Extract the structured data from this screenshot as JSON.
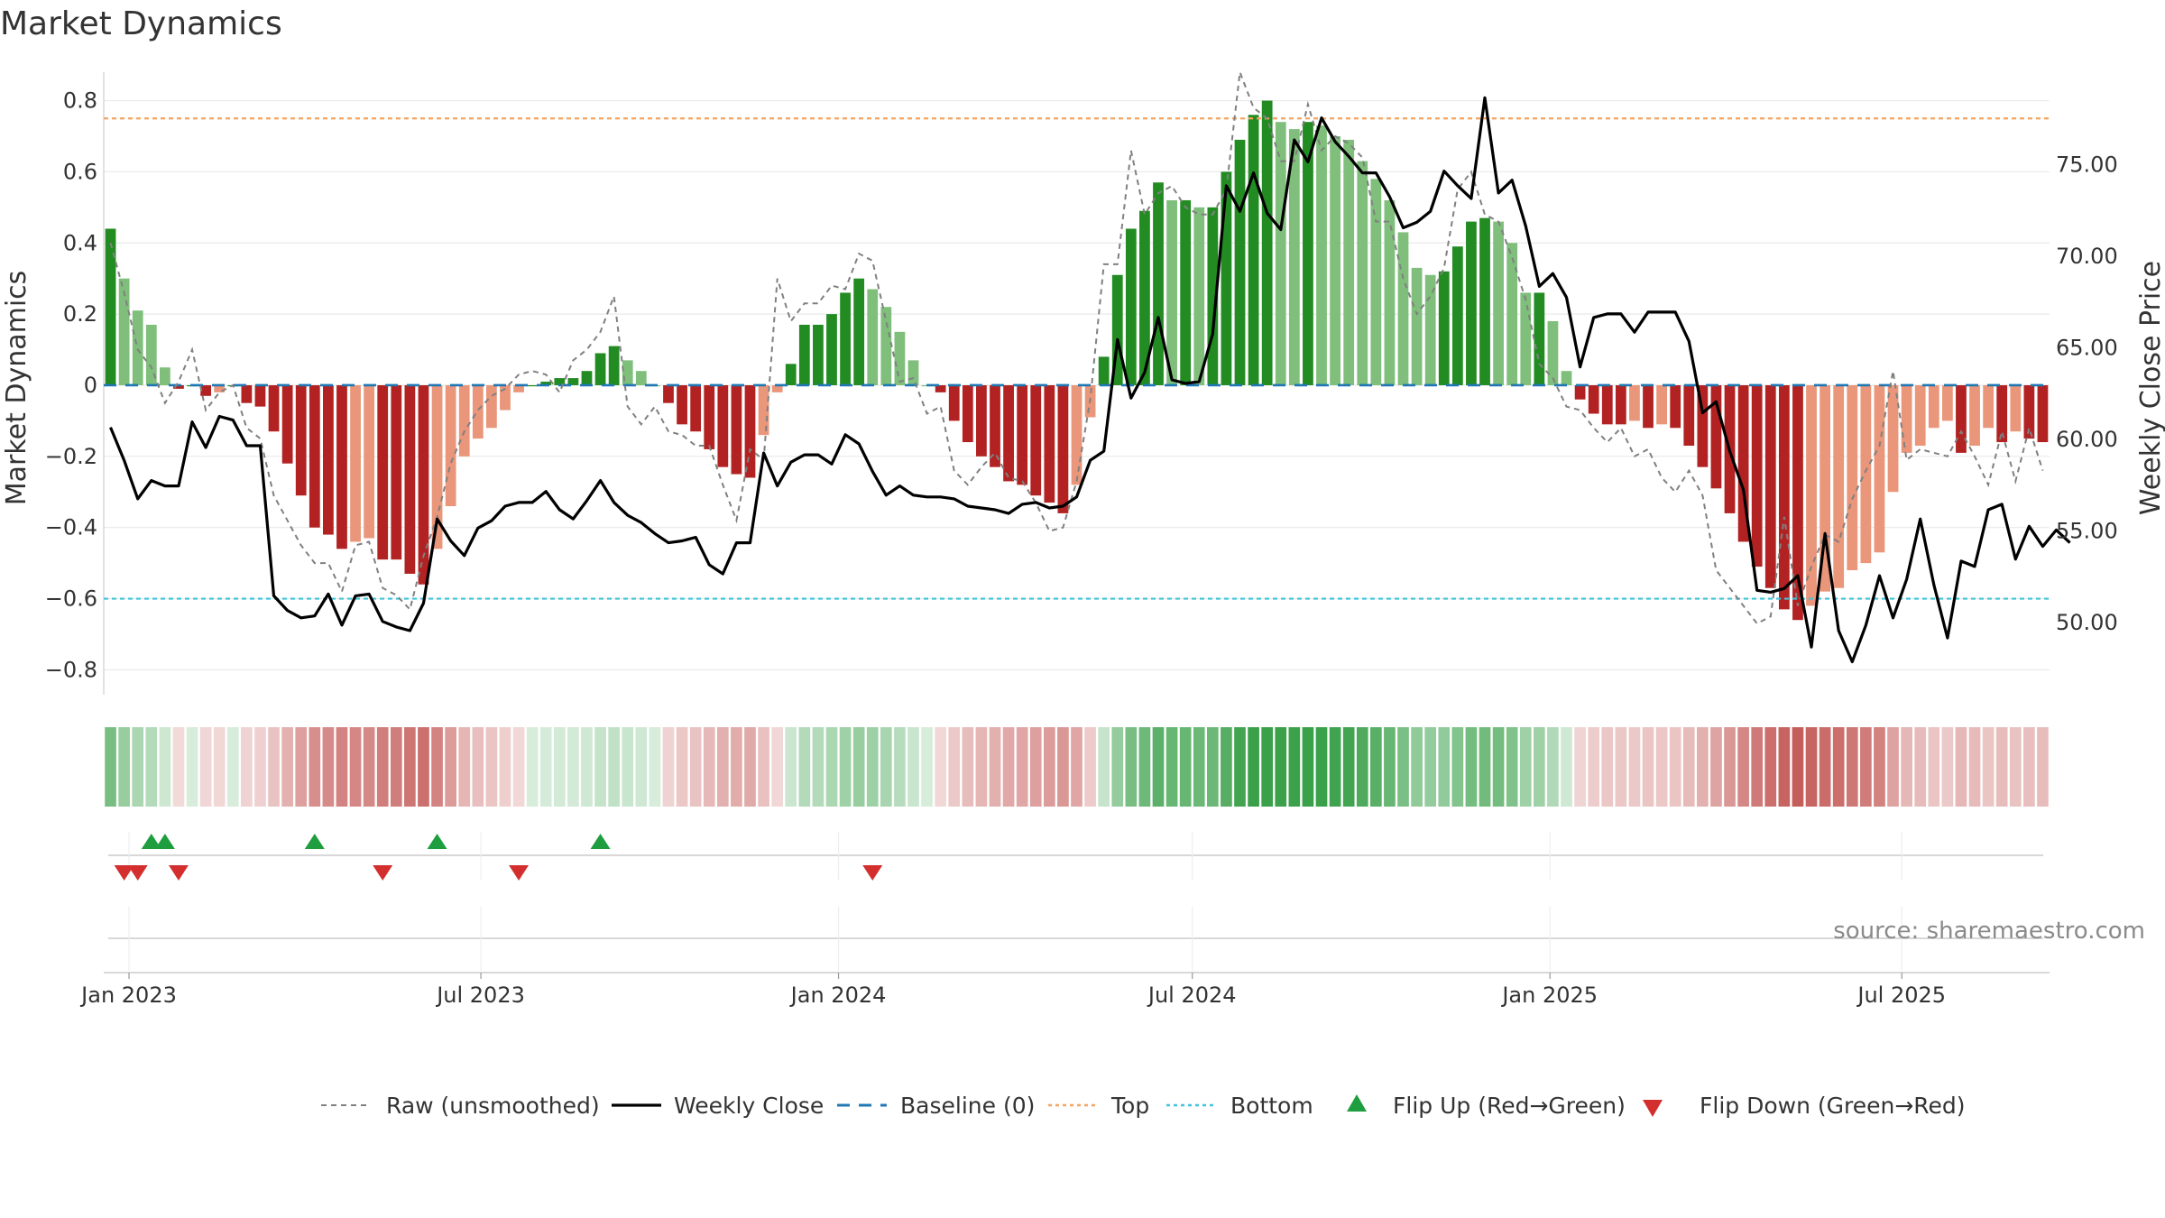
{
  "chart_data": {
    "type": "bar",
    "title": "Market Dynamics",
    "ylabel_left": "Market Dynamics",
    "ylabel_right": "Weekly Close Price",
    "source": "source: sharemaestro.com",
    "xlim": [
      "2022-12-19",
      "2025-09-15"
    ],
    "ylim_left": [
      -0.87,
      0.88
    ],
    "ylim_right": [
      46.0,
      80.0
    ],
    "left_ticks": [
      {
        "v": 0.8,
        "label": "0.8"
      },
      {
        "v": 0.6,
        "label": "0.6"
      },
      {
        "v": 0.4,
        "label": "0.4"
      },
      {
        "v": 0.2,
        "label": "0.2"
      },
      {
        "v": 0.0,
        "label": "0"
      },
      {
        "v": -0.2,
        "label": "−0.2"
      },
      {
        "v": -0.4,
        "label": "−0.4"
      },
      {
        "v": -0.6,
        "label": "−0.6"
      },
      {
        "v": -0.8,
        "label": "−0.8"
      }
    ],
    "right_ticks": [
      {
        "v": 75,
        "label": "75.00"
      },
      {
        "v": 70,
        "label": "70.00"
      },
      {
        "v": 65,
        "label": "65.00"
      },
      {
        "v": 60,
        "label": "60.00"
      },
      {
        "v": 55,
        "label": "55.00"
      },
      {
        "v": 50,
        "label": "50.00"
      }
    ],
    "x_ticks": [
      {
        "date": "2023-01-01",
        "label": "Jan 2023"
      },
      {
        "date": "2023-07-01",
        "label": "Jul 2023"
      },
      {
        "date": "2024-01-01",
        "label": "Jan 2024"
      },
      {
        "date": "2024-07-01",
        "label": "Jul 2024"
      },
      {
        "date": "2025-01-01",
        "label": "Jan 2025"
      },
      {
        "date": "2025-07-01",
        "label": "Jul 2025"
      }
    ],
    "start_date": "2022-12-19",
    "reference_lines": {
      "top": 0.75,
      "bottom": -0.6,
      "baseline": 0.0
    },
    "series": [
      {
        "name": "Market Dynamics",
        "values": [
          0.44,
          0.3,
          0.21,
          0.17,
          0.05,
          -0.01,
          0.0,
          -0.03,
          -0.02,
          0.0,
          -0.05,
          -0.06,
          -0.13,
          -0.22,
          -0.31,
          -0.4,
          -0.42,
          -0.46,
          -0.44,
          -0.43,
          -0.49,
          -0.49,
          -0.53,
          -0.56,
          -0.46,
          -0.34,
          -0.2,
          -0.15,
          -0.12,
          -0.07,
          -0.02,
          0.0,
          0.01,
          0.02,
          0.02,
          0.04,
          0.09,
          0.11,
          0.07,
          0.04,
          0.0,
          -0.05,
          -0.11,
          -0.13,
          -0.18,
          -0.23,
          -0.25,
          -0.26,
          -0.14,
          -0.02,
          0.06,
          0.17,
          0.17,
          0.2,
          0.26,
          0.3,
          0.27,
          0.22,
          0.15,
          0.07,
          0.0,
          -0.02,
          -0.1,
          -0.16,
          -0.2,
          -0.23,
          -0.27,
          -0.28,
          -0.31,
          -0.33,
          -0.36,
          -0.28,
          -0.09,
          0.08,
          0.31,
          0.44,
          0.49,
          0.57,
          0.52,
          0.52,
          0.5,
          0.5,
          0.6,
          0.69,
          0.76,
          0.8,
          0.74,
          0.72,
          0.74,
          0.73,
          0.7,
          0.69,
          0.63,
          0.58,
          0.52,
          0.43,
          0.33,
          0.31,
          0.32,
          0.39,
          0.46,
          0.47,
          0.46,
          0.4,
          0.26,
          0.26,
          0.18,
          0.04,
          -0.04,
          -0.08,
          -0.11,
          -0.11,
          -0.1,
          -0.12,
          -0.11,
          -0.12,
          -0.17,
          -0.23,
          -0.29,
          -0.36,
          -0.44,
          -0.51,
          -0.57,
          -0.63,
          -0.66,
          -0.62,
          -0.58,
          -0.57,
          -0.52,
          -0.5,
          -0.47,
          -0.3,
          -0.19,
          -0.17,
          -0.12,
          -0.1,
          -0.19,
          -0.17,
          -0.12,
          -0.16,
          -0.13,
          -0.15,
          -0.16
        ]
      },
      {
        "name": "Raw (unsmoothed)",
        "values": [
          0.4,
          0.26,
          0.1,
          0.05,
          -0.05,
          0.01,
          0.1,
          -0.07,
          -0.02,
          0.0,
          -0.12,
          -0.15,
          -0.31,
          -0.38,
          -0.45,
          -0.5,
          -0.5,
          -0.58,
          -0.45,
          -0.44,
          -0.57,
          -0.59,
          -0.63,
          -0.48,
          -0.37,
          -0.22,
          -0.13,
          -0.07,
          -0.03,
          -0.01,
          0.03,
          0.04,
          0.03,
          -0.02,
          0.07,
          0.1,
          0.15,
          0.25,
          -0.06,
          -0.11,
          -0.06,
          -0.13,
          -0.14,
          -0.17,
          -0.17,
          -0.28,
          -0.38,
          -0.18,
          -0.21,
          0.3,
          0.18,
          0.23,
          0.23,
          0.28,
          0.27,
          0.37,
          0.35,
          0.18,
          0.01,
          0.02,
          -0.08,
          -0.06,
          -0.24,
          -0.28,
          -0.23,
          -0.19,
          -0.26,
          -0.27,
          -0.33,
          -0.41,
          -0.4,
          -0.27,
          -0.04,
          0.34,
          0.34,
          0.66,
          0.48,
          0.54,
          0.56,
          0.5,
          0.48,
          0.48,
          0.55,
          0.88,
          0.78,
          0.75,
          0.63,
          0.63,
          0.79,
          0.66,
          0.7,
          0.68,
          0.64,
          0.46,
          0.46,
          0.3,
          0.2,
          0.25,
          0.33,
          0.55,
          0.6,
          0.48,
          0.46,
          0.36,
          0.24,
          0.06,
          0.02,
          -0.06,
          -0.07,
          -0.12,
          -0.16,
          -0.12,
          -0.2,
          -0.18,
          -0.26,
          -0.3,
          -0.24,
          -0.31,
          -0.52,
          -0.57,
          -0.62,
          -0.67,
          -0.65,
          -0.37,
          -0.62,
          -0.51,
          -0.42,
          -0.44,
          -0.32,
          -0.24,
          -0.17,
          0.04,
          -0.21,
          -0.18,
          -0.19,
          -0.2,
          -0.13,
          -0.2,
          -0.28,
          -0.13,
          -0.27,
          -0.12,
          -0.24
        ]
      },
      {
        "name": "Weekly Close",
        "values": [
          60.6,
          58.8,
          56.7,
          57.7,
          57.4,
          57.4,
          60.9,
          59.5,
          61.2,
          61.0,
          59.6,
          59.6,
          51.4,
          50.6,
          50.2,
          50.3,
          51.5,
          49.8,
          51.4,
          51.5,
          50.0,
          49.7,
          49.5,
          51.0,
          55.6,
          54.4,
          53.6,
          55.1,
          55.5,
          56.3,
          56.5,
          56.5,
          57.1,
          56.1,
          55.6,
          56.6,
          57.7,
          56.5,
          55.8,
          55.4,
          54.8,
          54.3,
          54.4,
          54.6,
          53.1,
          52.6,
          54.3,
          54.3,
          59.2,
          57.4,
          58.7,
          59.1,
          59.1,
          58.6,
          60.2,
          59.7,
          58.2,
          56.9,
          57.4,
          56.9,
          56.8,
          56.8,
          56.7,
          56.3,
          56.2,
          56.1,
          55.9,
          56.4,
          56.5,
          56.2,
          56.3,
          56.8,
          58.8,
          59.3,
          65.4,
          62.2,
          63.6,
          66.6,
          63.2,
          63.0,
          63.1,
          65.7,
          73.8,
          72.4,
          74.5,
          72.3,
          71.4,
          76.3,
          75.1,
          77.5,
          76.2,
          75.4,
          74.5,
          74.5,
          73.2,
          71.5,
          71.8,
          72.4,
          74.6,
          73.8,
          73.1,
          78.6,
          73.4,
          74.1,
          71.6,
          68.3,
          69.0,
          67.7,
          63.9,
          66.6,
          66.8,
          66.8,
          65.8,
          66.9,
          66.9,
          66.9,
          65.3,
          61.4,
          62.0,
          59.3,
          57.2,
          51.7,
          51.6,
          51.8,
          52.5,
          48.6,
          54.8,
          49.5,
          47.8,
          49.8,
          52.5,
          50.2,
          52.3,
          55.6,
          52.0,
          49.1,
          53.3,
          53.0,
          56.1,
          56.4,
          53.4,
          55.2,
          54.1,
          55.0,
          54.3
        ]
      }
    ],
    "flip_up_weeks": [
      3,
      4,
      15,
      24,
      36
    ],
    "flip_down_weeks": [
      1,
      2,
      5,
      20,
      30,
      56
    ],
    "legend": [
      {
        "name": "Raw (unsmoothed)",
        "style": "dashed-gray"
      },
      {
        "name": "Weekly Close",
        "style": "solid-black"
      },
      {
        "name": "Baseline (0)",
        "style": "dashed-blue"
      },
      {
        "name": "Top",
        "style": "dotted-orange"
      },
      {
        "name": "Bottom",
        "style": "dotted-cyan"
      },
      {
        "name": "Flip Up (Red→Green)",
        "style": "triangle-up-green"
      },
      {
        "name": "Flip Down (Green→Red)",
        "style": "triangle-down-red"
      }
    ],
    "colors": {
      "strong_green": "#228b22",
      "light_green": "#7fbf7b",
      "strong_red": "#b22222",
      "light_red": "#e9967a",
      "raw": "#808080",
      "close": "#000000",
      "baseline": "#1f77b4",
      "top": "#f4a460",
      "bottom": "#40c4d8",
      "flip_up": "#1e9e3e",
      "flip_down": "#d32f2f"
    }
  }
}
